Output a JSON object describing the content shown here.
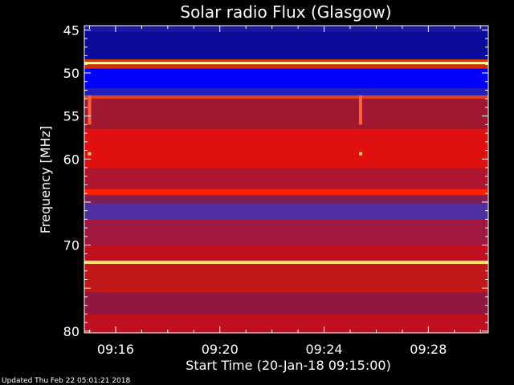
{
  "chart_data": {
    "type": "heatmap",
    "title": "Solar radio Flux (Glasgow)",
    "xlabel": "Start Time (20-Jan-18 09:15:00)",
    "ylabel": "Frequency [MHz]",
    "x_range_minutes": [
      9.25,
      9.51
    ],
    "x_ticks": [
      {
        "label": "09:16",
        "minute": 16
      },
      {
        "label": "09:20",
        "minute": 20
      },
      {
        "label": "09:24",
        "minute": 24
      },
      {
        "label": "09:28",
        "minute": 28
      }
    ],
    "xlim_minutes": [
      14.8,
      30.3
    ],
    "ylim": [
      80.2,
      44.5
    ],
    "y_ticks": [
      45,
      50,
      55,
      60,
      65,
      70,
      75,
      80
    ],
    "y_tick_labels": [
      "45",
      "50",
      "55",
      "60",
      "",
      "70",
      "",
      "80"
    ],
    "bands": [
      {
        "from": 44.5,
        "to": 45.2,
        "color": "#1a1aa0"
      },
      {
        "from": 45.2,
        "to": 48.4,
        "color": "#0a0a9a"
      },
      {
        "from": 48.4,
        "to": 48.7,
        "color": "#c04000"
      },
      {
        "from": 48.7,
        "to": 49.0,
        "color": "#ffffa0"
      },
      {
        "from": 49.0,
        "to": 49.5,
        "color": "#d03000"
      },
      {
        "from": 49.5,
        "to": 51.8,
        "color": "#0000ff"
      },
      {
        "from": 51.8,
        "to": 52.6,
        "color": "#2020c0"
      },
      {
        "from": 52.6,
        "to": 53.0,
        "color": "#e04020"
      },
      {
        "from": 53.0,
        "to": 56.5,
        "color": "#a01830"
      },
      {
        "from": 56.5,
        "to": 61.0,
        "color": "#e01010"
      },
      {
        "from": 61.0,
        "to": 63.5,
        "color": "#b01530"
      },
      {
        "from": 63.5,
        "to": 64.2,
        "color": "#ff2000"
      },
      {
        "from": 64.2,
        "to": 65.2,
        "color": "#802050"
      },
      {
        "from": 65.2,
        "to": 67.0,
        "color": "#5030a0"
      },
      {
        "from": 67.0,
        "to": 70.0,
        "color": "#a01840"
      },
      {
        "from": 70.0,
        "to": 71.8,
        "color": "#c01020"
      },
      {
        "from": 71.8,
        "to": 72.2,
        "color": "#ffe060"
      },
      {
        "from": 72.2,
        "to": 75.5,
        "color": "#c01818"
      },
      {
        "from": 75.5,
        "to": 78.0,
        "color": "#901840"
      },
      {
        "from": 78.0,
        "to": 80.2,
        "color": "#c01020"
      }
    ],
    "events_minutes": [
      15.0,
      25.4
    ]
  },
  "footer": "Updated Thu Feb 22 05:01:21 2018"
}
